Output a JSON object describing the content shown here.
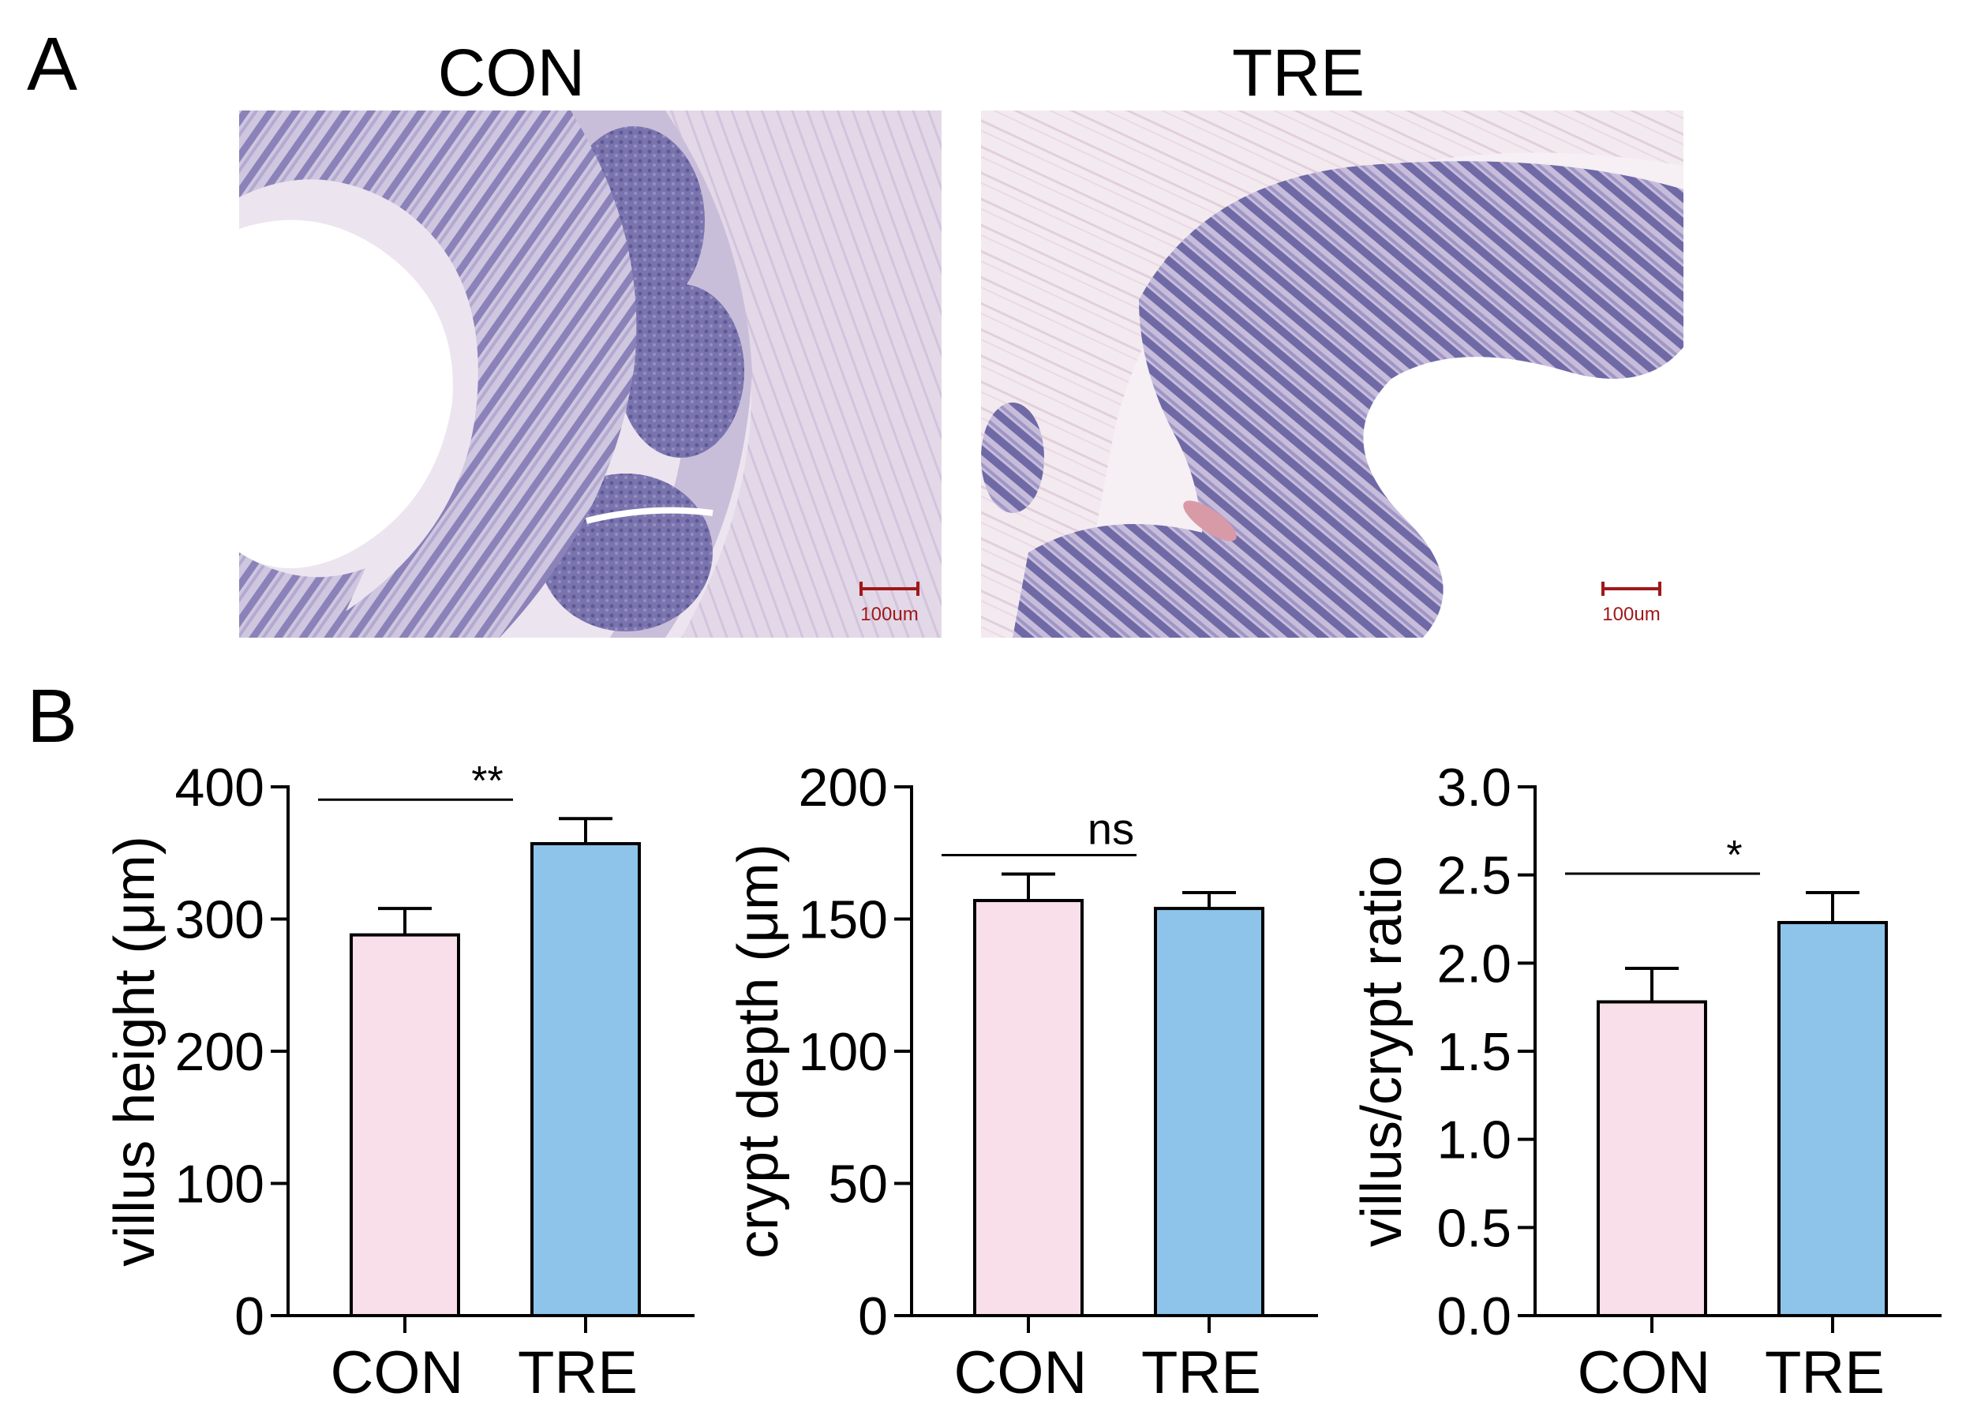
{
  "panels": {
    "a_label": "A",
    "b_label": "B"
  },
  "images": [
    {
      "title": "CON",
      "scale_bar": "100um",
      "tissue": "intestine H&E section, large open lumen with villi"
    },
    {
      "title": "TRE",
      "scale_bar": "100um",
      "tissue": "intestine H&E section, villi arc with submucosa"
    }
  ],
  "colors": {
    "con_fill": "#f8dfe9",
    "tre_fill": "#8ec4ea",
    "stain_dark": "#6f6aa6",
    "stain_light": "#d8d0e6",
    "scale_red": "#a01818"
  },
  "chart_data": [
    {
      "type": "bar",
      "categories": [
        "CON",
        "TRE"
      ],
      "values": [
        288,
        357
      ],
      "errors": [
        20,
        19
      ],
      "ylabel": "villus height (μm)",
      "ylim": [
        0,
        400
      ],
      "yticks": [
        "0",
        "100",
        "200",
        "300",
        "400"
      ],
      "significance": "**"
    },
    {
      "type": "bar",
      "categories": [
        "CON",
        "TRE"
      ],
      "values": [
        157,
        154
      ],
      "errors": [
        10,
        6
      ],
      "ylabel": "crypt depth (μm)",
      "ylim": [
        0,
        200
      ],
      "yticks": [
        "0",
        "50",
        "100",
        "150",
        "200"
      ],
      "significance": "ns"
    },
    {
      "type": "bar",
      "categories": [
        "CON",
        "TRE"
      ],
      "values": [
        1.78,
        2.23
      ],
      "errors": [
        0.19,
        0.17
      ],
      "ylabel": "villus/crypt ratio",
      "ylim": [
        0,
        3.0
      ],
      "yticks": [
        "0.0",
        "0.5",
        "1.0",
        "1.5",
        "2.0",
        "2.5",
        "3.0"
      ],
      "significance": "*"
    }
  ]
}
